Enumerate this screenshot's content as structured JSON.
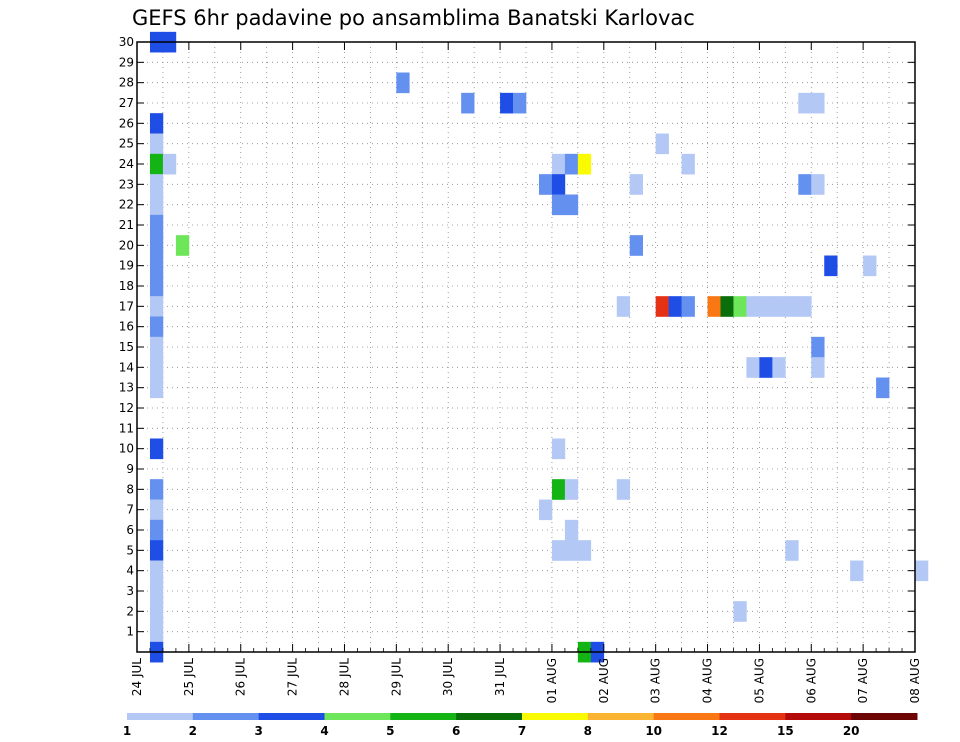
{
  "chart_data": {
    "type": "heatmap",
    "title": "GEFS 6hr padavine po ansamblima Banatski Karlovac",
    "xlabel": "",
    "ylabel": "",
    "x_range_days": [
      0,
      15
    ],
    "y_range": [
      0,
      30
    ],
    "grid": true,
    "x_tick_labels": [
      "24 JUL",
      "25 JUL",
      "26 JUL",
      "27 JUL",
      "28 JUL",
      "29 JUL",
      "30 JUL",
      "31 JUL",
      "01 AUG",
      "02 AUG",
      "03 AUG",
      "04 AUG",
      "05 AUG",
      "06 AUG",
      "07 AUG",
      "08 AUG"
    ],
    "y_tick_labels": [
      "1",
      "2",
      "3",
      "4",
      "5",
      "6",
      "7",
      "8",
      "9",
      "10",
      "11",
      "12",
      "13",
      "14",
      "15",
      "16",
      "17",
      "18",
      "19",
      "20",
      "21",
      "22",
      "23",
      "24",
      "25",
      "26",
      "27",
      "28",
      "29",
      "30"
    ],
    "colorbar": {
      "labels": [
        "1",
        "2",
        "3",
        "4",
        "5",
        "6",
        "7",
        "8",
        "10",
        "12",
        "15",
        "20"
      ],
      "colors": [
        "#b4c8f5",
        "#6490f0",
        "#1e4ee6",
        "#6ee65a",
        "#14b414",
        "#0a6e0a",
        "#fafa00",
        "#fab432",
        "#fa7814",
        "#e63214",
        "#b40a0a",
        "#6e0505"
      ]
    },
    "cells": [
      {
        "t": 0.25,
        "m": 30,
        "level": 3
      },
      {
        "t": 0.5,
        "m": 30,
        "level": 3
      },
      {
        "t": 0.25,
        "m": 26,
        "level": 3
      },
      {
        "t": 0.25,
        "m": 25,
        "level": 1
      },
      {
        "t": 0.25,
        "m": 24,
        "level": 5
      },
      {
        "t": 0.5,
        "m": 24,
        "level": 1
      },
      {
        "t": 0.25,
        "m": 23,
        "level": 1
      },
      {
        "t": 0.25,
        "m": 22,
        "level": 1
      },
      {
        "t": 0.25,
        "m": 21,
        "level": 2
      },
      {
        "t": 0.25,
        "m": 20,
        "level": 2
      },
      {
        "t": 0.75,
        "m": 20,
        "level": 4
      },
      {
        "t": 0.25,
        "m": 19,
        "level": 2
      },
      {
        "t": 0.25,
        "m": 18,
        "level": 2
      },
      {
        "t": 0.25,
        "m": 17,
        "level": 1
      },
      {
        "t": 0.25,
        "m": 16,
        "level": 2
      },
      {
        "t": 0.25,
        "m": 15,
        "level": 1
      },
      {
        "t": 0.25,
        "m": 14,
        "level": 1
      },
      {
        "t": 0.25,
        "m": 13,
        "level": 1
      },
      {
        "t": 0.25,
        "m": 10,
        "level": 3
      },
      {
        "t": 0.25,
        "m": 8,
        "level": 2
      },
      {
        "t": 0.25,
        "m": 7,
        "level": 1
      },
      {
        "t": 0.25,
        "m": 6,
        "level": 2
      },
      {
        "t": 0.25,
        "m": 5,
        "level": 3
      },
      {
        "t": 0.25,
        "m": 4,
        "level": 1
      },
      {
        "t": 0.25,
        "m": 3,
        "level": 1
      },
      {
        "t": 0.25,
        "m": 2,
        "level": 1
      },
      {
        "t": 0.25,
        "m": 1,
        "level": 1
      },
      {
        "t": 0.25,
        "m": 0,
        "level": 3
      },
      {
        "t": 5.0,
        "m": 28,
        "level": 2
      },
      {
        "t": 6.25,
        "m": 27,
        "level": 2
      },
      {
        "t": 7.0,
        "m": 27,
        "level": 3
      },
      {
        "t": 7.25,
        "m": 27,
        "level": 2
      },
      {
        "t": 12.75,
        "m": 27,
        "level": 1
      },
      {
        "t": 13.0,
        "m": 27,
        "level": 1
      },
      {
        "t": 10.0,
        "m": 25,
        "level": 1
      },
      {
        "t": 8.0,
        "m": 24,
        "level": 1
      },
      {
        "t": 8.25,
        "m": 24,
        "level": 2
      },
      {
        "t": 8.5,
        "m": 24,
        "level": 7
      },
      {
        "t": 10.5,
        "m": 24,
        "level": 1
      },
      {
        "t": 7.75,
        "m": 23,
        "level": 2
      },
      {
        "t": 8.0,
        "m": 23,
        "level": 3
      },
      {
        "t": 9.5,
        "m": 23,
        "level": 1
      },
      {
        "t": 12.75,
        "m": 23,
        "level": 2
      },
      {
        "t": 13.0,
        "m": 23,
        "level": 1
      },
      {
        "t": 8.0,
        "m": 22,
        "level": 2
      },
      {
        "t": 8.25,
        "m": 22,
        "level": 2
      },
      {
        "t": 9.5,
        "m": 20,
        "level": 2
      },
      {
        "t": 13.25,
        "m": 19,
        "level": 3
      },
      {
        "t": 14.0,
        "m": 19,
        "level": 1
      },
      {
        "t": 9.25,
        "m": 17,
        "level": 1
      },
      {
        "t": 10.0,
        "m": 17,
        "level": 10
      },
      {
        "t": 10.25,
        "m": 17,
        "level": 3
      },
      {
        "t": 10.5,
        "m": 17,
        "level": 2
      },
      {
        "t": 11.0,
        "m": 17,
        "level": 9
      },
      {
        "t": 11.25,
        "m": 17,
        "level": 6
      },
      {
        "t": 11.5,
        "m": 17,
        "level": 4
      },
      {
        "t": 11.75,
        "m": 17,
        "level": 1
      },
      {
        "t": 12.0,
        "m": 17,
        "level": 1
      },
      {
        "t": 12.25,
        "m": 17,
        "level": 1
      },
      {
        "t": 12.5,
        "m": 17,
        "level": 1
      },
      {
        "t": 12.75,
        "m": 17,
        "level": 1
      },
      {
        "t": 13.0,
        "m": 15,
        "level": 2
      },
      {
        "t": 13.0,
        "m": 14,
        "level": 1
      },
      {
        "t": 11.75,
        "m": 14,
        "level": 1
      },
      {
        "t": 12.0,
        "m": 14,
        "level": 3
      },
      {
        "t": 12.25,
        "m": 14,
        "level": 1
      },
      {
        "t": 14.25,
        "m": 13,
        "level": 2
      },
      {
        "t": 8.0,
        "m": 10,
        "level": 1
      },
      {
        "t": 8.0,
        "m": 8,
        "level": 5
      },
      {
        "t": 8.25,
        "m": 8,
        "level": 1
      },
      {
        "t": 9.25,
        "m": 8,
        "level": 1
      },
      {
        "t": 7.75,
        "m": 7,
        "level": 1
      },
      {
        "t": 8.25,
        "m": 6,
        "level": 1
      },
      {
        "t": 8.0,
        "m": 5,
        "level": 1
      },
      {
        "t": 8.25,
        "m": 5,
        "level": 1
      },
      {
        "t": 8.5,
        "m": 5,
        "level": 1
      },
      {
        "t": 12.5,
        "m": 5,
        "level": 1
      },
      {
        "t": 13.75,
        "m": 4,
        "level": 1
      },
      {
        "t": 15.0,
        "m": 4,
        "level": 1
      },
      {
        "t": 11.5,
        "m": 2,
        "level": 1
      },
      {
        "t": 8.5,
        "m": 0,
        "level": 5
      },
      {
        "t": 8.75,
        "m": 0,
        "level": 3
      }
    ]
  }
}
